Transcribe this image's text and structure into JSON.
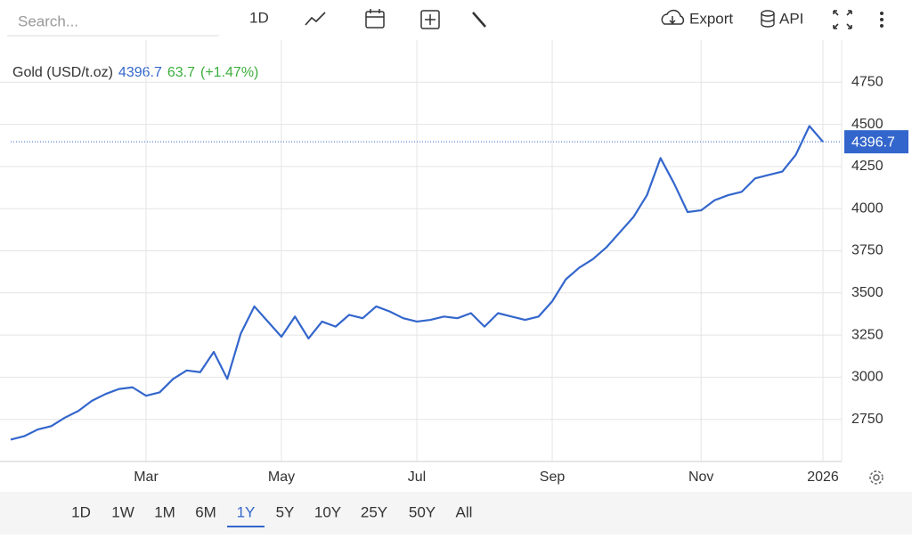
{
  "toolbar": {
    "search_placeholder": "Search...",
    "interval": "1D",
    "export": "Export",
    "api": "API"
  },
  "range_buttons": {
    "items": [
      "1D",
      "1W",
      "1M",
      "6M",
      "1Y",
      "5Y",
      "10Y",
      "25Y",
      "50Y",
      "All"
    ],
    "selected": "1Y"
  },
  "chart_data": {
    "type": "line",
    "title": "Gold (USD/t.oz)",
    "last_price": 4396.7,
    "change": 63.7,
    "change_label": "(+1.47%)",
    "categories": [
      null,
      null,
      null,
      null,
      null,
      null,
      null,
      null,
      null,
      null,
      "Mar",
      null,
      null,
      null,
      null,
      null,
      null,
      null,
      null,
      null,
      "May",
      null,
      null,
      null,
      null,
      null,
      null,
      null,
      null,
      null,
      "Jul",
      null,
      null,
      null,
      null,
      null,
      null,
      null,
      null,
      null,
      "Sep",
      null,
      null,
      null,
      null,
      null,
      null,
      null,
      null,
      null,
      null,
      "Nov",
      null,
      null,
      null,
      null,
      null,
      null,
      null,
      null,
      "2026"
    ],
    "series": [
      {
        "name": "Gold",
        "color": "#3366cc",
        "values": [
          2630,
          2650,
          2690,
          2710,
          2760,
          2800,
          2860,
          2900,
          2930,
          2940,
          2890,
          2910,
          2990,
          3040,
          3030,
          3150,
          2990,
          3260,
          3420,
          3330,
          3240,
          3360,
          3230,
          3330,
          3300,
          3370,
          3350,
          3420,
          3390,
          3350,
          3330,
          3340,
          3360,
          3350,
          3380,
          3300,
          3380,
          3360,
          3340,
          3360,
          3450,
          3580,
          3650,
          3700,
          3770,
          3860,
          3950,
          4080,
          4300,
          4150,
          3980,
          3990,
          4050,
          4080,
          4100,
          4180,
          4200,
          4220,
          4320,
          4490,
          4396.7
        ]
      }
    ],
    "ylim": [
      2500,
      5000
    ],
    "yticks": [
      2750,
      3000,
      3250,
      3500,
      3750,
      4000,
      4250,
      4500,
      4750
    ],
    "grid": true
  }
}
